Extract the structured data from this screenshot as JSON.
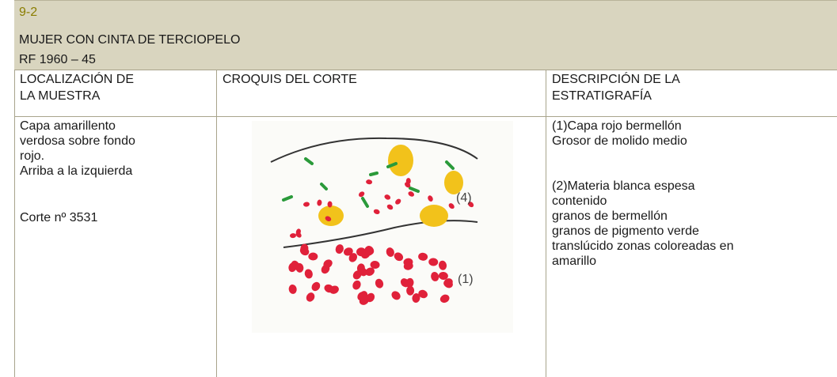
{
  "header": {
    "code": "9-2",
    "title": "MUJER CON CINTA DE TERCIOPELO",
    "ref": "RF 1960 – 45"
  },
  "table": {
    "headers": [
      [
        "LOCALIZACIÓN DE",
        "LA MUESTRA"
      ],
      [
        "CROQUIS DEL CORTE"
      ],
      [
        "DESCRIPCIÓN DE LA",
        "ESTRATIGRAFÍA"
      ]
    ],
    "location": [
      [
        "Capa amarillento",
        "verdosa sobre fondo",
        "rojo.",
        "Arriba a la izquierda"
      ],
      [
        "Corte nº 3531"
      ]
    ],
    "description": [
      [
        "(1)Capa rojo bermellón",
        "Grosor de molido medio"
      ],
      [
        "(2)Materia blanca espesa",
        "contenido",
        "granos de bermellón",
        "granos de pigmento verde",
        "translúcido zonas coloreadas en",
        "amarillo"
      ]
    ]
  },
  "sketch": {
    "labels": [
      "(4)",
      "(1)"
    ]
  }
}
